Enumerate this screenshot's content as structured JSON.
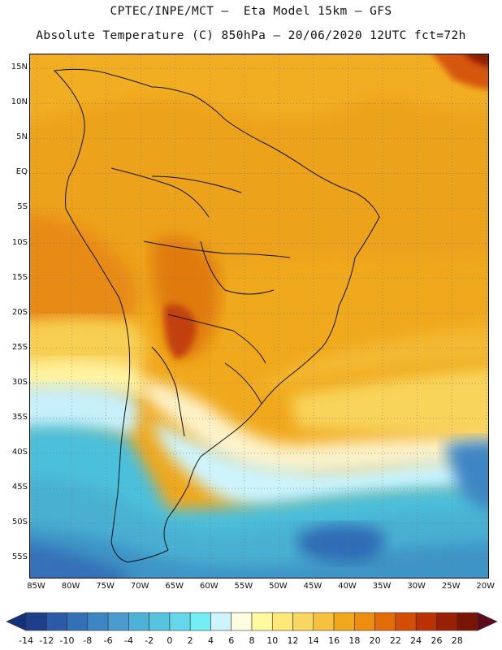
{
  "title": {
    "line1": "CPTEC/INPE/MCT –  Eta Model 15km – GFS",
    "line2": "Absolute Temperature (C) 850hPa – 20/06/2020 12UTC fct=72h"
  },
  "map": {
    "lat_range": [
      -58,
      17
    ],
    "lon_range": [
      -86,
      -19.5
    ],
    "lat_ticks": [
      {
        "value": 15,
        "label": "15N"
      },
      {
        "value": 10,
        "label": "10N"
      },
      {
        "value": 5,
        "label": "5N"
      },
      {
        "value": 0,
        "label": "EQ"
      },
      {
        "value": -5,
        "label": "5S"
      },
      {
        "value": -10,
        "label": "10S"
      },
      {
        "value": -15,
        "label": "15S"
      },
      {
        "value": -20,
        "label": "20S"
      },
      {
        "value": -25,
        "label": "25S"
      },
      {
        "value": -30,
        "label": "30S"
      },
      {
        "value": -35,
        "label": "35S"
      },
      {
        "value": -40,
        "label": "40S"
      },
      {
        "value": -45,
        "label": "45S"
      },
      {
        "value": -50,
        "label": "50S"
      },
      {
        "value": -55,
        "label": "55S"
      }
    ],
    "lon_ticks": [
      {
        "value": -85,
        "label": "85W"
      },
      {
        "value": -80,
        "label": "80W"
      },
      {
        "value": -75,
        "label": "75W"
      },
      {
        "value": -70,
        "label": "70W"
      },
      {
        "value": -65,
        "label": "65W"
      },
      {
        "value": -60,
        "label": "60W"
      },
      {
        "value": -55,
        "label": "55W"
      },
      {
        "value": -50,
        "label": "50W"
      },
      {
        "value": -45,
        "label": "45W"
      },
      {
        "value": -40,
        "label": "40W"
      },
      {
        "value": -35,
        "label": "35W"
      },
      {
        "value": -30,
        "label": "30W"
      },
      {
        "value": -25,
        "label": "25W"
      },
      {
        "value": -20,
        "label": "20W"
      }
    ],
    "gridlines": "dotted"
  },
  "colorbar": {
    "labels": [
      "-14",
      "-12",
      "-10",
      "-8",
      "-6",
      "-4",
      "-2",
      "0",
      "2",
      "4",
      "6",
      "8",
      "10",
      "12",
      "14",
      "16",
      "18",
      "20",
      "22",
      "24",
      "26",
      "28"
    ],
    "colors": [
      "#1f3f8c",
      "#2a5aa8",
      "#3270b8",
      "#3d86c4",
      "#4a9ccc",
      "#4eb2d6",
      "#56c4de",
      "#66d6ea",
      "#70eef4",
      "#cdf4fc",
      "#fffbe0",
      "#fffaa0",
      "#fde878",
      "#f9d660",
      "#f4c23e",
      "#f0a81c",
      "#ee8e10",
      "#e26c0a",
      "#d24e06",
      "#b83204",
      "#982004",
      "#7a1404"
    ],
    "under_color": "#13307a",
    "over_color": "#5e0a1e"
  }
}
